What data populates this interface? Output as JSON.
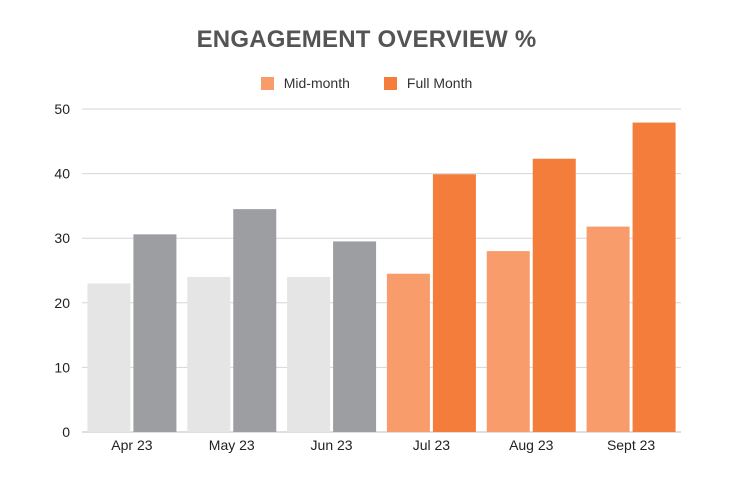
{
  "chart_data": {
    "type": "bar",
    "title": "ENGAGEMENT OVERVIEW %",
    "xlabel": "",
    "ylabel": "",
    "ylim": [
      0,
      50
    ],
    "yticks": [
      0,
      10,
      20,
      30,
      40,
      50
    ],
    "grid": true,
    "legend_position": "top-center",
    "categories": [
      "Apr 23",
      "May 23",
      "Jun 23",
      "Jul 23",
      "Aug 23",
      "Sept 23"
    ],
    "series": [
      {
        "name": "Mid-month",
        "color": "#F79C6A",
        "values": [
          23,
          24,
          24,
          24.5,
          28,
          31.8
        ],
        "bar_colors": [
          "#E5E5E5",
          "#E5E5E5",
          "#E5E5E5",
          "#F79C6A",
          "#F79C6A",
          "#F79C6A"
        ]
      },
      {
        "name": "Full Month",
        "color": "#F47D3C",
        "values": [
          30.6,
          34.5,
          29.5,
          39.9,
          42.3,
          47.9
        ],
        "bar_colors": [
          "#9D9EA1",
          "#9D9EA1",
          "#9D9EA1",
          "#F47D3C",
          "#F47D3C",
          "#F47D3C"
        ]
      }
    ]
  }
}
